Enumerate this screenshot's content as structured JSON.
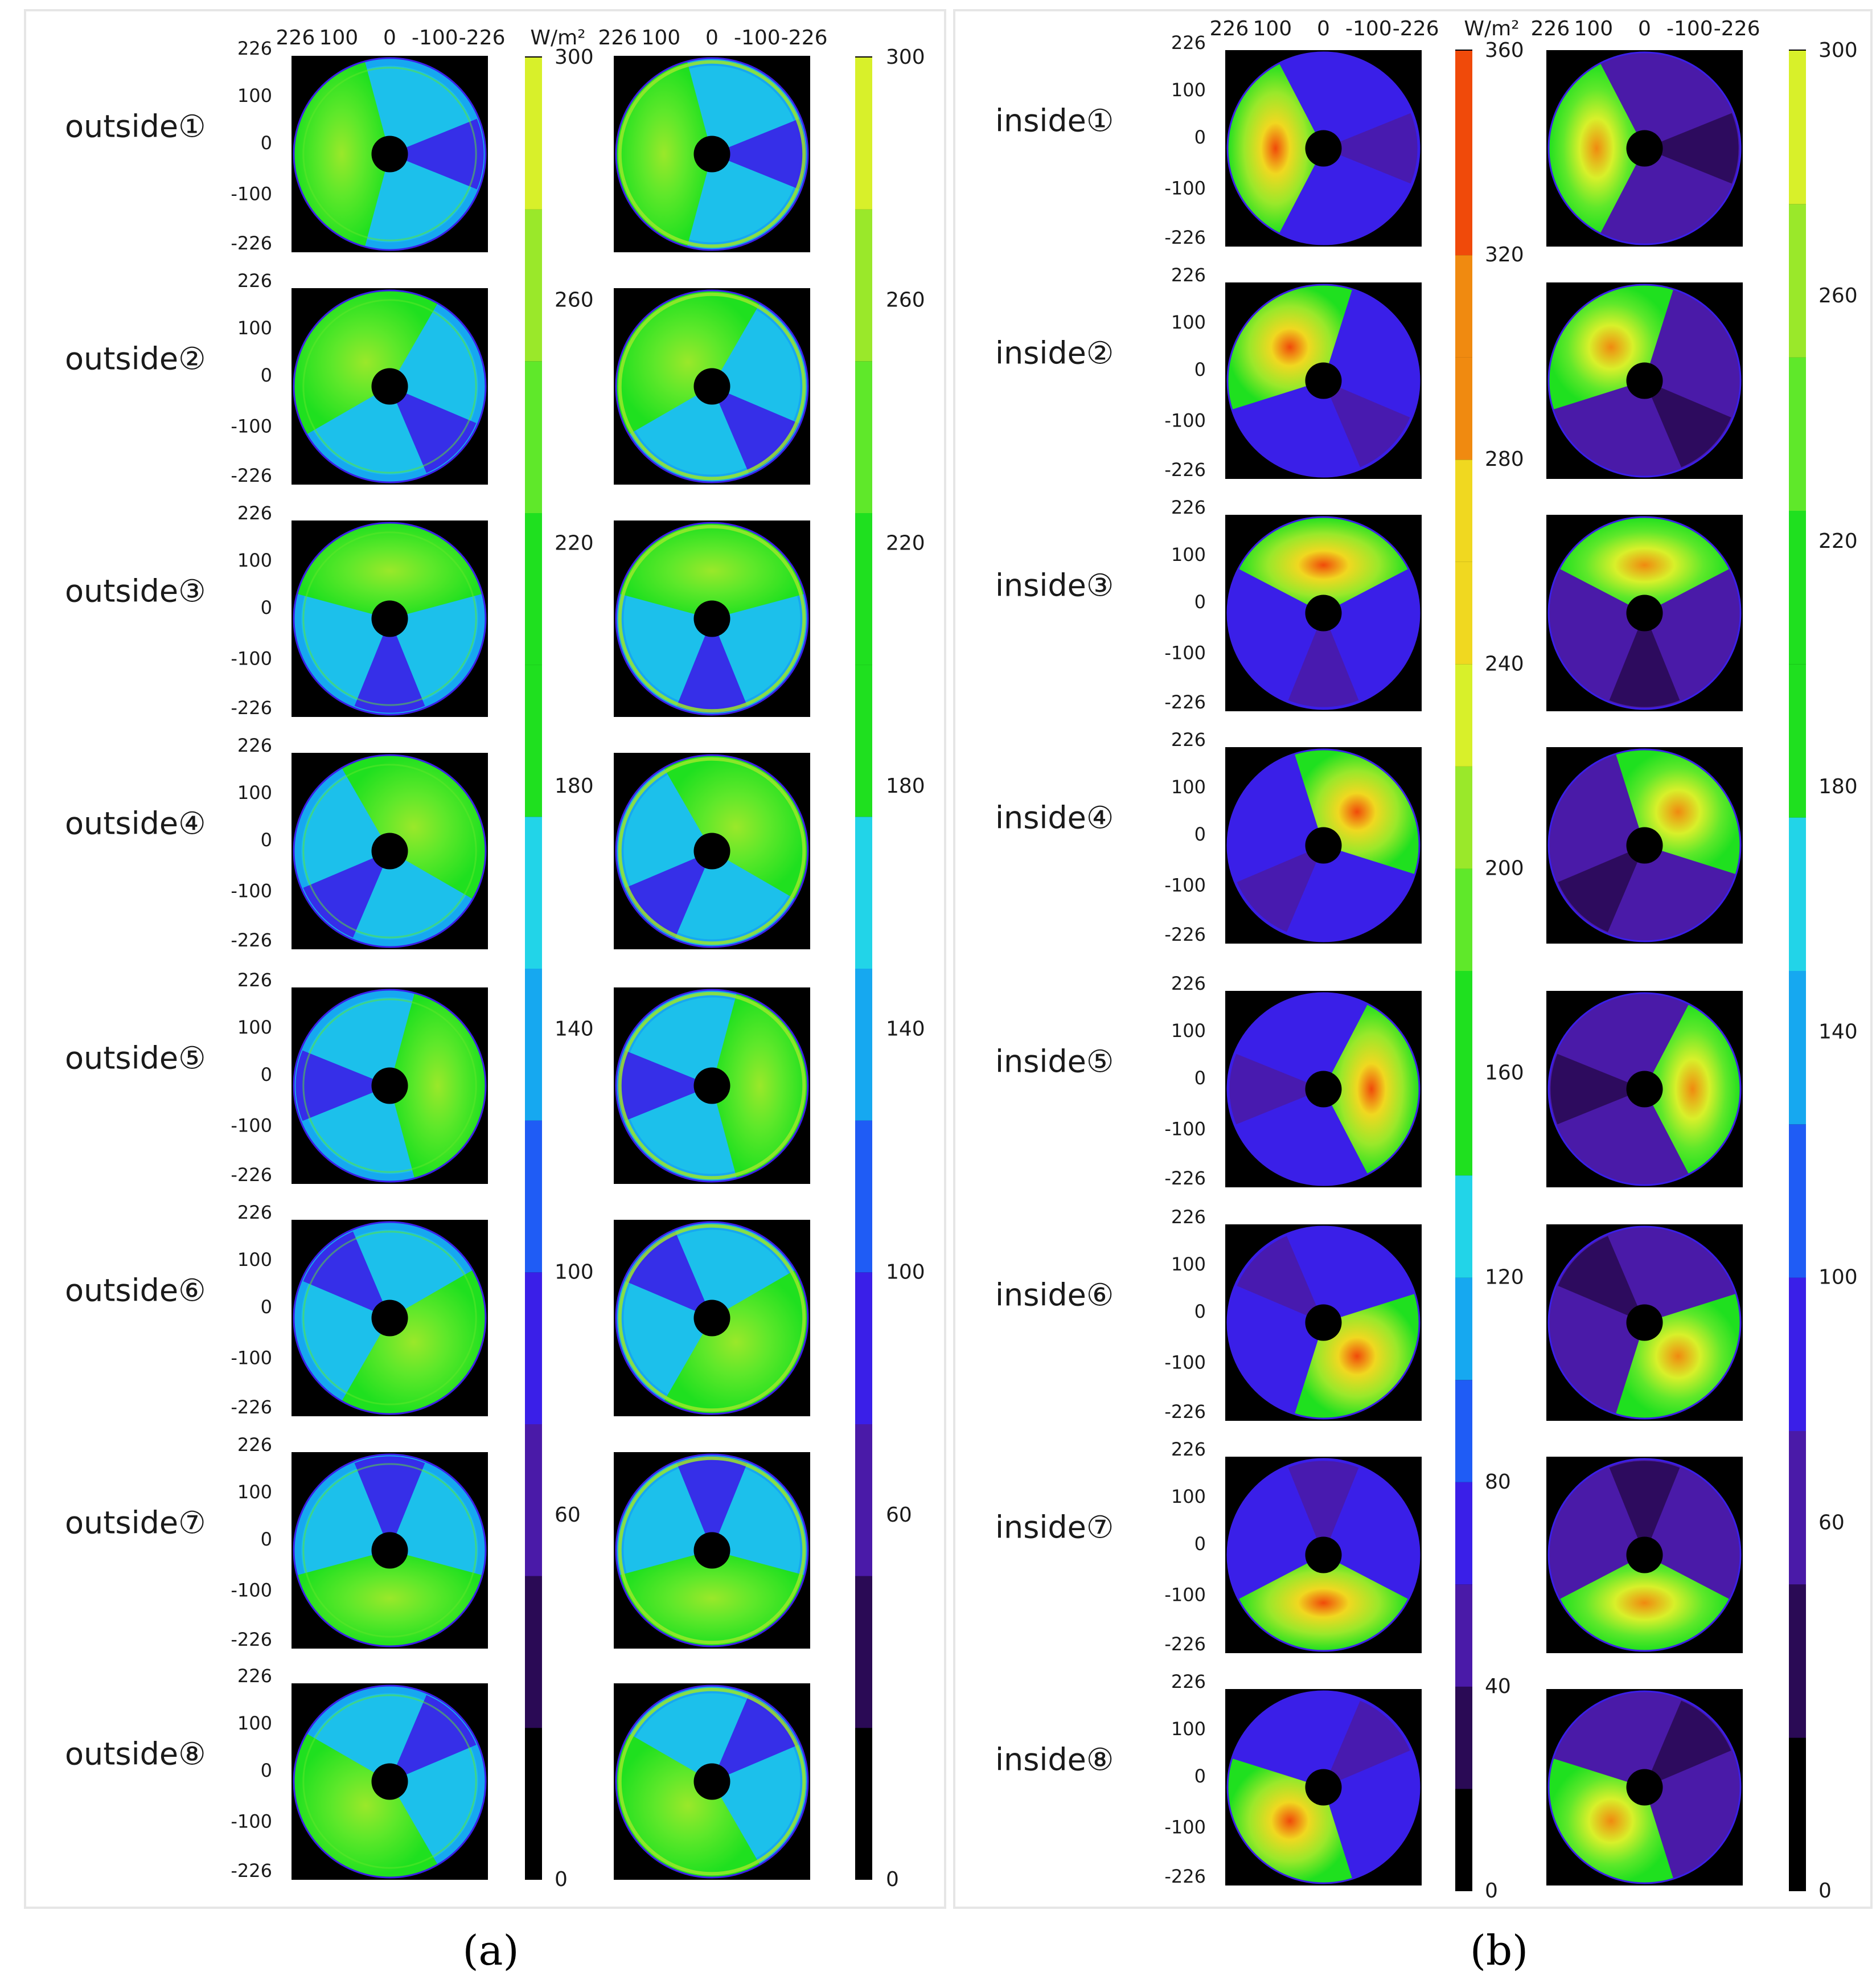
{
  "chart_data": {
    "type": "heatmap",
    "unit": "W/m²",
    "panels": [
      {
        "caption": "(a)",
        "row_labels": [
          "outside①",
          "outside②",
          "outside③",
          "outside④",
          "outside⑤",
          "outside⑥",
          "outside⑦",
          "outside⑧"
        ],
        "x_ticks": [
          "226",
          "100",
          "0",
          "-100",
          "-226"
        ],
        "y_ticks": [
          "226",
          "100",
          "0",
          "-100",
          "-226"
        ],
        "hot_direction_deg": [
          180,
          135,
          90,
          45,
          0,
          -45,
          -90,
          -135
        ],
        "colorbars": [
          {
            "ticks": [
              "300",
              "260",
              "220",
              "180",
              "140",
              "100",
              "60",
              "0"
            ],
            "range": [
              0,
              300
            ]
          },
          {
            "ticks": [
              "300",
              "260",
              "220",
              "180",
              "140",
              "100",
              "60",
              "0"
            ],
            "range": [
              0,
              300
            ]
          }
        ]
      },
      {
        "caption": "(b)",
        "row_labels": [
          "inside①",
          "inside②",
          "inside③",
          "inside④",
          "inside⑤",
          "inside⑥",
          "inside⑦",
          "inside⑧"
        ],
        "x_ticks": [
          "226",
          "100",
          "0",
          "-100",
          "-226"
        ],
        "y_ticks": [
          "226",
          "100",
          "0",
          "-100",
          "-226"
        ],
        "hot_direction_deg": [
          180,
          135,
          90,
          45,
          0,
          -45,
          -90,
          -135
        ],
        "colorbars": [
          {
            "ticks": [
              "360",
              "320",
              "280",
              "240",
              "200",
              "160",
              "120",
              "80",
              "40",
              "0"
            ],
            "range": [
              0,
              360
            ]
          },
          {
            "ticks": [
              "300",
              "260",
              "220",
              "180",
              "140",
              "100",
              "60",
              "0"
            ],
            "range": [
              0,
              300
            ]
          }
        ]
      }
    ],
    "colors": {
      "level_0": "#000000",
      "level_1": "#2a0a55",
      "level_2": "#4a1aa8",
      "level_3": "#3a1fe8",
      "level_4": "#1f5cf5",
      "level_5": "#16a8f0",
      "level_6": "#22d4e8",
      "level_7": "#1fe01f",
      "level_8": "#5fe82a",
      "level_9": "#9ae82a",
      "level_10": "#d8f02a",
      "level_11": "#f0d820",
      "level_12": "#f08a10",
      "level_13": "#f04a0a"
    }
  }
}
